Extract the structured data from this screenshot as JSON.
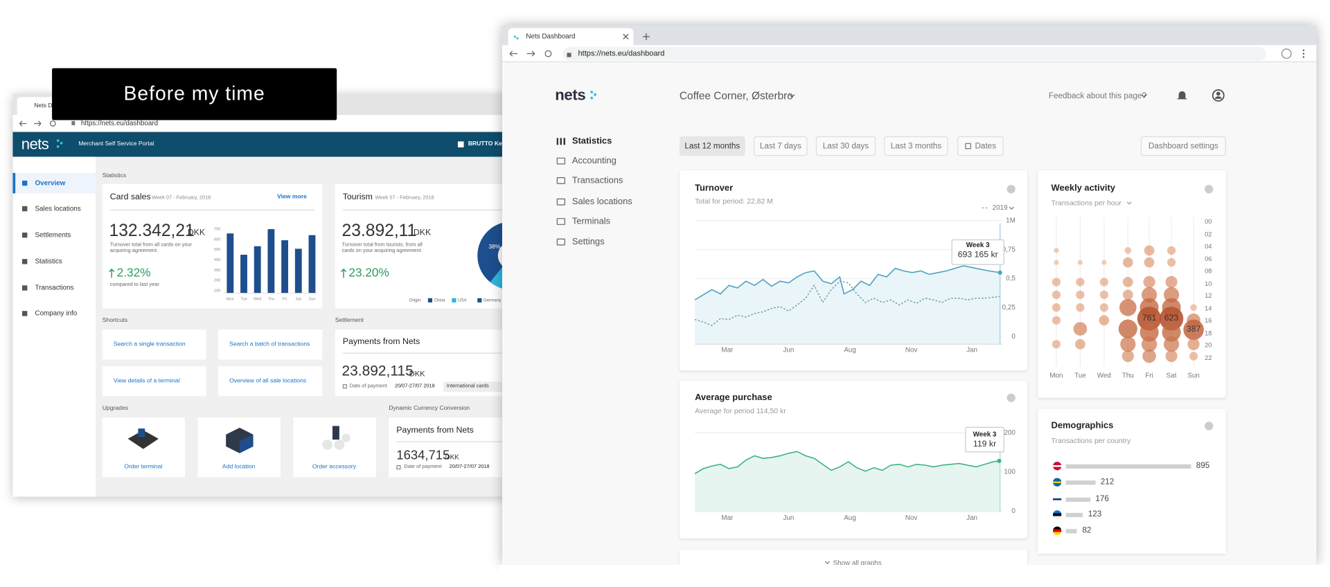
{
  "overlay_label": "Before my time",
  "old_window": {
    "tab": "Nets Dashboard",
    "url": "https://nets.eu/dashboard",
    "logo": "nets",
    "portal": "Merchant Self Service Portal",
    "merchant": "BRUTTO Kebab",
    "nav": [
      "Overview",
      "Sales locations",
      "Settlements",
      "Statistics",
      "Transactions",
      "Company info"
    ],
    "section_statistics": "Statistics",
    "card_sales": {
      "title": "Card sales",
      "period": "Week 07 - February, 2018",
      "link": "View more",
      "amount": "132.342,21",
      "currency": "DKK",
      "desc": "Turnover total from all cards on your acquiring agreement.",
      "change": "2.32%",
      "compare": "compared to last year",
      "yticks": [
        "700",
        "600",
        "500",
        "400",
        "300",
        "200",
        "100"
      ],
      "days": [
        "Mon",
        "Tue",
        "Wed",
        "Thu",
        "Fri",
        "Sat",
        "Sun"
      ]
    },
    "tourism": {
      "title": "Tourism",
      "period": "Week 07 - February, 2018",
      "amount": "23.892,11",
      "currency": "DKK",
      "desc": "Turnover total from tourists, from all cards on your acquiring agreement.",
      "change": "23.20%",
      "compare": "compared to last year",
      "pie_label": "38%",
      "legend": [
        "Origin",
        "China",
        "USA",
        "Germany"
      ]
    },
    "shortcuts": {
      "title": "Shortcuts",
      "items": [
        "Search a single transaction",
        "Search a batch of transactions",
        "View details of a terminal",
        "Overview of all sale locations"
      ]
    },
    "settlement": {
      "title": "Settlement",
      "heading": "Payments from Nets",
      "amount": "23.892,115",
      "currency": "DKK",
      "date_label": "Date of payment",
      "date": "20/07-27/07 2018",
      "tag": "International cards"
    },
    "upgrades": {
      "title": "Upgrades",
      "items": [
        "Order terminal",
        "Add location",
        "Order accessory"
      ]
    },
    "dcc": {
      "title": "Dynamic Currency Conversion",
      "heading": "Payments from Nets",
      "amount": "1634,715",
      "currency": "DKK",
      "date_label": "Date of payment",
      "date": "20/07-27/07 2018"
    }
  },
  "new_window": {
    "tab": "Nets Dashboard",
    "url": "https://nets.eu/dashboard",
    "logo": "nets",
    "merchant": "Coffee Corner, Østerbro",
    "feedback": "Feedback about this page?",
    "nav": [
      "Statistics",
      "Accounting",
      "Transactions",
      "Sales locations",
      "Terminals",
      "Settings"
    ],
    "filters": [
      "Last 12 months",
      "Last 7 days",
      "Last 30 days",
      "Last 3 months",
      "Dates"
    ],
    "settings_button": "Dashboard settings",
    "turnover": {
      "title": "Turnover",
      "subtitle": "Total for period: 22,82 M",
      "legend": "2019",
      "yticks": [
        "1M",
        "0,75",
        "0,5",
        "0,25",
        "0"
      ],
      "xticks": [
        "Mar",
        "Jun",
        "Aug",
        "Nov",
        "Jan"
      ],
      "tooltip_week": "Week 3",
      "tooltip_value": "693 165 kr"
    },
    "average": {
      "title": "Average purchase",
      "subtitle": "Average for period 114,50 kr",
      "yticks": [
        "200",
        "100",
        "0"
      ],
      "xticks": [
        "Mar",
        "Jun",
        "Aug",
        "Nov",
        "Jan"
      ],
      "tooltip_week": "Week 3",
      "tooltip_value": "119 kr"
    },
    "weekly": {
      "title": "Weekly activity",
      "subtitle": "Transactions per hour",
      "hours": [
        "00",
        "02",
        "04",
        "06",
        "08",
        "10",
        "12",
        "14",
        "16",
        "18",
        "20",
        "22"
      ],
      "days": [
        "Mon",
        "Tue",
        "Wed",
        "Thu",
        "Fri",
        "Sat",
        "Sun"
      ],
      "bubble_labels": [
        "761",
        "623",
        "387"
      ]
    },
    "demographics": {
      "title": "Demographics",
      "subtitle": "Transactions per country",
      "values": [
        895,
        212,
        176,
        123,
        82
      ]
    },
    "show_all": "Show all graphs"
  }
}
